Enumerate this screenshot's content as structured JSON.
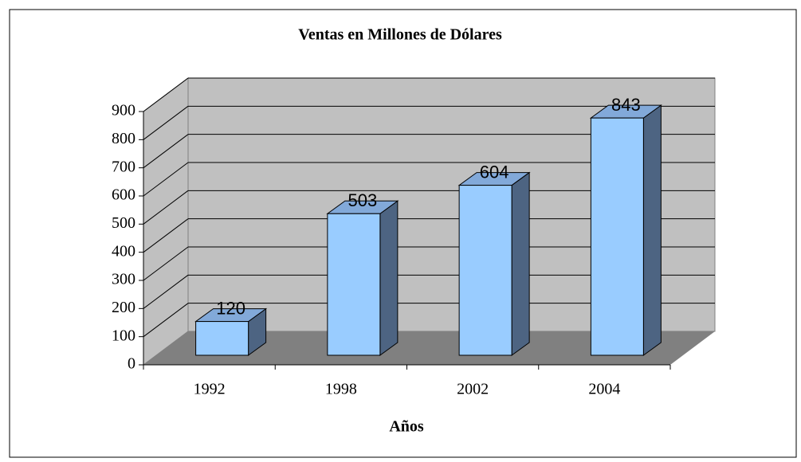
{
  "chart_data": {
    "type": "bar",
    "title": "Ventas en Millones de Dólares",
    "xlabel": "Años",
    "categories": [
      "1992",
      "1998",
      "2002",
      "2004"
    ],
    "values": [
      120,
      503,
      604,
      843
    ],
    "color": "#99ccff",
    "ylim": [
      0,
      900
    ],
    "yticks": [
      0,
      100,
      200,
      300,
      400,
      500,
      600,
      700,
      800,
      900
    ],
    "grid": true
  }
}
